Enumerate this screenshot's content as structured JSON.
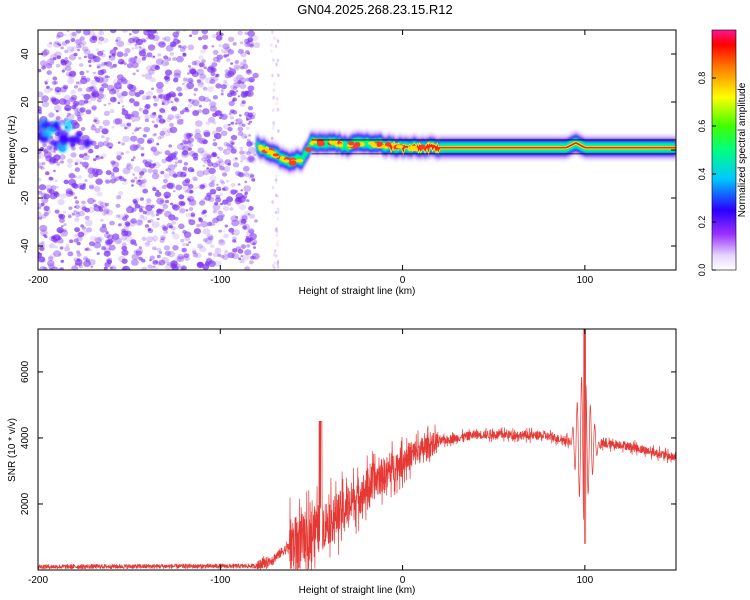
{
  "title": "GN04.2025.268.23.15.R12",
  "colors": {
    "snr_line": "#e53935",
    "noise_speckle": "#7b2ff0",
    "frame": "#000000"
  },
  "chart_data": [
    {
      "type": "heatmap",
      "xlabel": "Height of straight line (km)",
      "ylabel": "Frequency (Hz)",
      "xlim": [
        -200,
        150
      ],
      "ylim": [
        -50,
        50
      ],
      "x_ticks": [
        -200,
        -100,
        0,
        100
      ],
      "y_ticks": [
        -40,
        -20,
        0,
        20,
        40
      ],
      "colorbar": {
        "label": "Normalized spectral amplitude",
        "range": [
          0,
          1
        ],
        "ticks": [
          "0.0",
          "0.2",
          "0.4",
          "0.6",
          "0.8"
        ],
        "colormap": "rainbow"
      },
      "ridge": {
        "description_points": [
          {
            "x": -80,
            "y": 2
          },
          {
            "x": -70,
            "y": -2
          },
          {
            "x": -62,
            "y": -5
          },
          {
            "x": -55,
            "y": -4
          },
          {
            "x": -50,
            "y": 3
          },
          {
            "x": -40,
            "y": 3
          },
          {
            "x": -30,
            "y": 2
          },
          {
            "x": -20,
            "y": 3
          },
          {
            "x": -10,
            "y": 2
          },
          {
            "x": 0,
            "y": 1
          },
          {
            "x": 30,
            "y": 1
          },
          {
            "x": 60,
            "y": 1
          },
          {
            "x": 90,
            "y": 1
          },
          {
            "x": 95,
            "y": 3
          },
          {
            "x": 100,
            "y": 1
          },
          {
            "x": 150,
            "y": 1
          }
        ],
        "low_height_blob": {
          "x": [
            -200,
            -172
          ],
          "y": 6
        }
      }
    },
    {
      "type": "line",
      "xlabel": "Height of straight line (km)",
      "ylabel": "SNR (10 * v/v)",
      "xlim": [
        -200,
        150
      ],
      "ylim": [
        0,
        7300
      ],
      "x_ticks": [
        -200,
        -100,
        0,
        100
      ],
      "y_ticks": [
        2000,
        4000,
        6000
      ],
      "envelope": [
        {
          "x": -200,
          "y": 100
        },
        {
          "x": -80,
          "y": 120
        },
        {
          "x": -72,
          "y": 300
        },
        {
          "x": -65,
          "y": 600
        },
        {
          "x": -55,
          "y": 900
        },
        {
          "x": -45,
          "y": 1300
        },
        {
          "x": -35,
          "y": 1700
        },
        {
          "x": -25,
          "y": 2200
        },
        {
          "x": -15,
          "y": 2700
        },
        {
          "x": -5,
          "y": 3100
        },
        {
          "x": 5,
          "y": 3500
        },
        {
          "x": 20,
          "y": 3900
        },
        {
          "x": 40,
          "y": 4100
        },
        {
          "x": 60,
          "y": 4100
        },
        {
          "x": 80,
          "y": 4050
        },
        {
          "x": 92,
          "y": 3900
        },
        {
          "x": 100,
          "y": 3800
        },
        {
          "x": 120,
          "y": 3800
        },
        {
          "x": 150,
          "y": 3400
        }
      ],
      "spike": {
        "x": 100,
        "max": 7300,
        "min": 800
      }
    }
  ]
}
